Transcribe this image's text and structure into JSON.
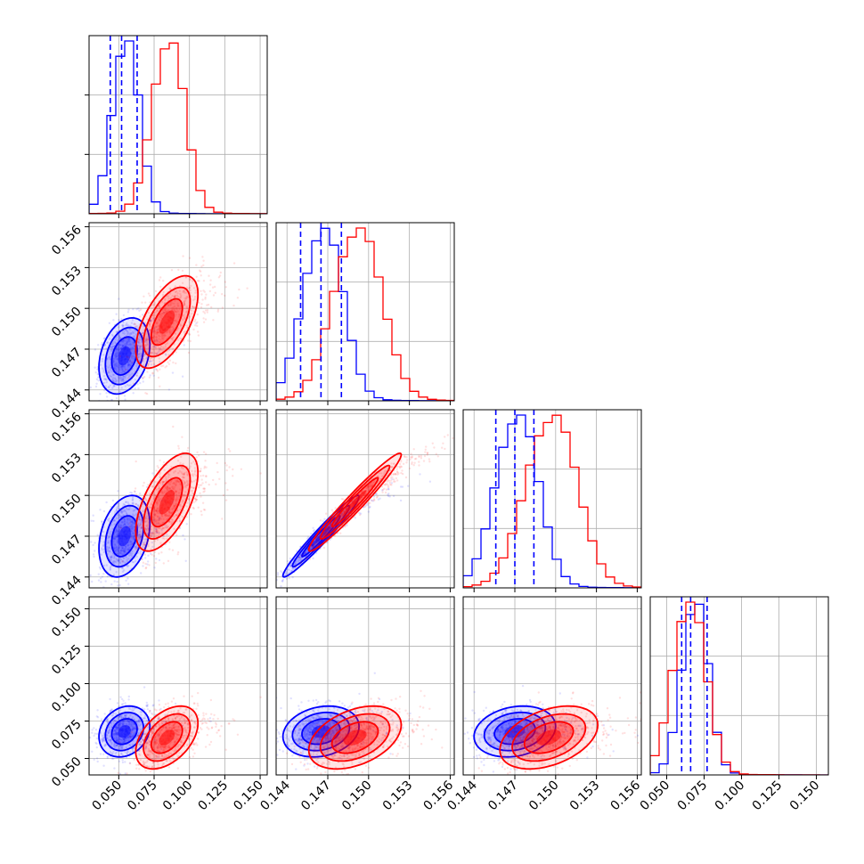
{
  "chart_data": {
    "type": "corner",
    "grid": true,
    "parameters": 4,
    "ticks": {
      "p1": [
        "0.050",
        "0.075",
        "0.100",
        "0.125",
        "0.150"
      ],
      "p2": [
        "0.144",
        "0.147",
        "0.150",
        "0.153",
        "0.156"
      ],
      "p3": [
        "0.144",
        "0.147",
        "0.150",
        "0.153",
        "0.156"
      ],
      "p4": [
        "0.050",
        "0.075",
        "0.100",
        "0.125",
        "0.150"
      ]
    },
    "ranges": {
      "p1": [
        0.029,
        0.155
      ],
      "p2": [
        0.1432,
        0.1563
      ],
      "p3": [
        0.1432,
        0.1563
      ],
      "p4": [
        0.039,
        0.158
      ]
    },
    "series": [
      {
        "color": "#0000ff",
        "mean": [
          0.054,
          0.1465,
          0.147,
          0.068
        ],
        "sd": [
          0.009,
          0.0014,
          0.0015,
          0.0085
        ],
        "corr": {
          "1-2": 0.3,
          "1-3": 0.3,
          "2-3": 0.97,
          "1-4": 0.2,
          "2-4": 0.2,
          "3-4": 0.2
        },
        "quantiles": {
          "p1": [
            0.044,
            0.052,
            0.063
          ],
          "p2": [
            0.145,
            0.1465,
            0.148
          ],
          "p3": [
            0.1456,
            0.147,
            0.1484
          ],
          "p4": [
            0.06,
            0.066,
            0.077
          ]
        }
      },
      {
        "color": "#ff0000",
        "mean": [
          0.084,
          0.149,
          0.1495,
          0.064
        ],
        "sd": [
          0.011,
          0.0017,
          0.0018,
          0.0105
        ],
        "corr": {
          "1-2": 0.6,
          "1-3": 0.6,
          "2-3": 0.97,
          "1-4": 0.45,
          "2-4": 0.4,
          "3-4": 0.4
        }
      }
    ]
  }
}
